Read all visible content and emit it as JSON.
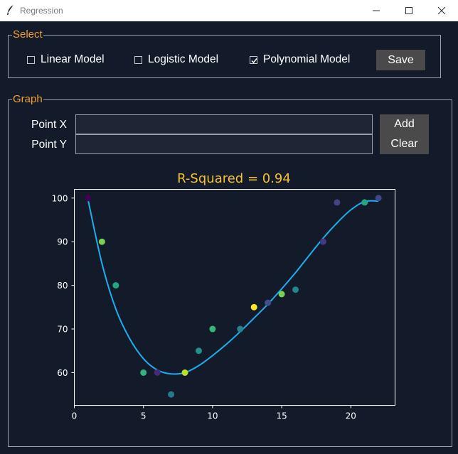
{
  "window": {
    "title": "Regression"
  },
  "select": {
    "legend": "Select",
    "options": [
      {
        "label": "Linear Model",
        "checked": false
      },
      {
        "label": "Logistic Model",
        "checked": false
      },
      {
        "label": "Polynomial Model",
        "checked": true
      }
    ],
    "save_label": "Save"
  },
  "graph": {
    "legend": "Graph",
    "point_x_label": "Point X",
    "point_y_label": "Point Y",
    "point_x_value": "",
    "point_y_value": "",
    "add_label": "Add",
    "clear_label": "Clear"
  },
  "chart_data": {
    "type": "scatter",
    "title": "R-Squared = 0.94",
    "xlabel": "",
    "ylabel": "",
    "xlim": [
      0,
      23.2
    ],
    "ylim": [
      52.5,
      102
    ],
    "xticks": [
      0,
      5,
      10,
      15,
      20
    ],
    "yticks": [
      60,
      70,
      80,
      90,
      100
    ],
    "grid": false,
    "points": [
      {
        "x": 1,
        "y": 100,
        "color": "#440154"
      },
      {
        "x": 2,
        "y": 90,
        "color": "#7ad151"
      },
      {
        "x": 3,
        "y": 80,
        "color": "#22a884"
      },
      {
        "x": 5,
        "y": 60,
        "color": "#2fb47c"
      },
      {
        "x": 6,
        "y": 60,
        "color": "#482878"
      },
      {
        "x": 7,
        "y": 55,
        "color": "#2a788e"
      },
      {
        "x": 8,
        "y": 60,
        "color": "#bddf26"
      },
      {
        "x": 9,
        "y": 65,
        "color": "#21918c"
      },
      {
        "x": 10,
        "y": 70,
        "color": "#35b779"
      },
      {
        "x": 12,
        "y": 70,
        "color": "#25858e"
      },
      {
        "x": 13,
        "y": 75,
        "color": "#fde725"
      },
      {
        "x": 14,
        "y": 76,
        "color": "#3b528b"
      },
      {
        "x": 15,
        "y": 78,
        "color": "#7ad151"
      },
      {
        "x": 16,
        "y": 79,
        "color": "#25858e"
      },
      {
        "x": 18,
        "y": 90,
        "color": "#443983"
      },
      {
        "x": 19,
        "y": 99,
        "color": "#414487"
      },
      {
        "x": 21,
        "y": 99,
        "color": "#22a884"
      },
      {
        "x": 22,
        "y": 100,
        "color": "#3e4989"
      }
    ],
    "fit_curve": {
      "color": "#1ab0f0",
      "x": [
        1,
        2,
        3,
        4,
        5,
        6,
        7,
        8,
        9,
        10,
        11,
        12,
        13,
        14,
        15,
        16,
        17,
        18,
        19,
        20,
        21,
        22
      ],
      "y": [
        99.5,
        85,
        74.6,
        67.8,
        63.2,
        60.6,
        59.7,
        60,
        61.6,
        63.9,
        66.5,
        69.4,
        72.5,
        75.7,
        79.2,
        82.9,
        86.9,
        90.8,
        94.3,
        97.3,
        99.2,
        99.3
      ]
    },
    "colors": {
      "axis": "#ffffff",
      "title": "#f5c230",
      "background": "#131a2a"
    }
  }
}
